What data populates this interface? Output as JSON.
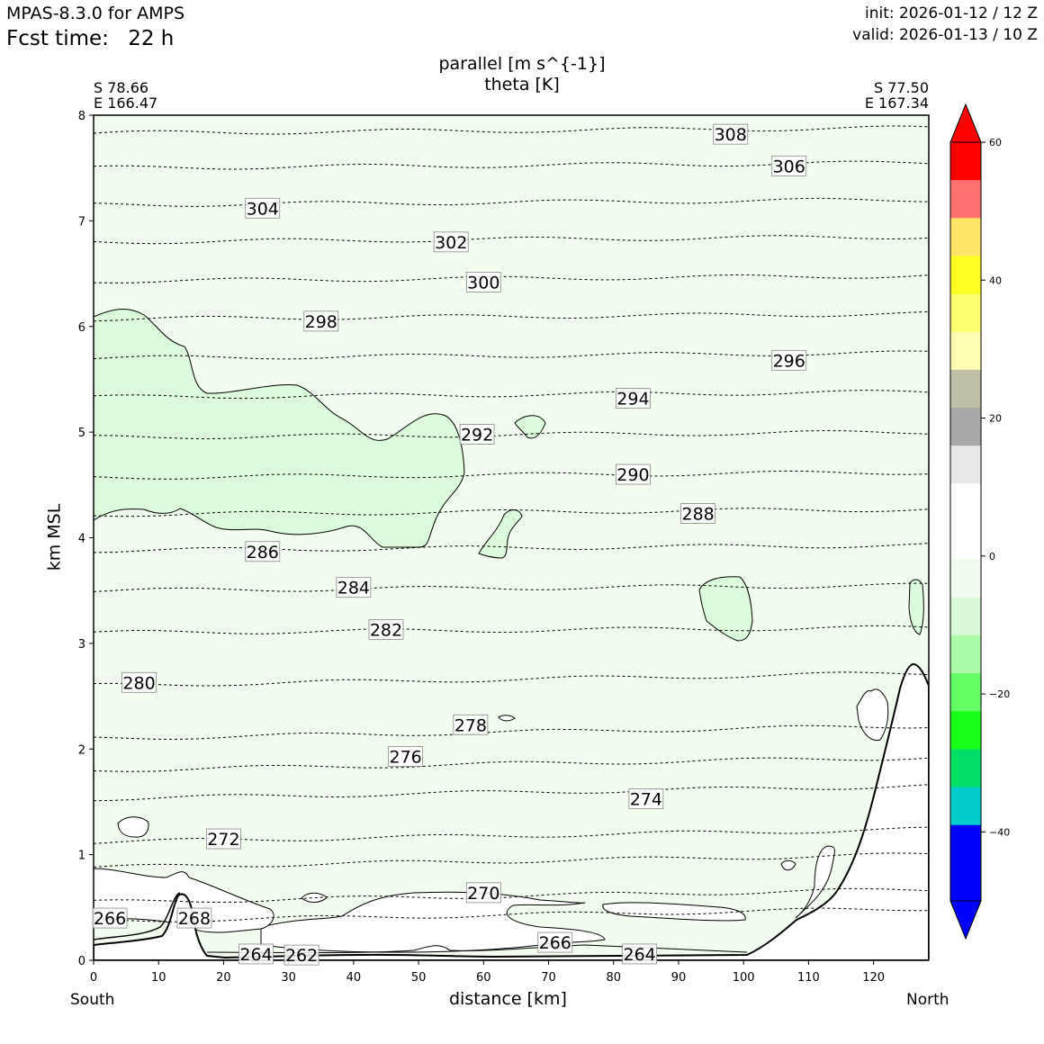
{
  "header": {
    "model": "MPAS-8.3.0 for AMPS",
    "fcst_label": "Fcst time:",
    "fcst_value": "22 h",
    "init": "init: 2026-01-12 / 12 Z",
    "valid": "valid: 2026-01-13 / 10 Z"
  },
  "chart_data": {
    "type": "cross-section contour",
    "title_line1": "parallel [m s^{-1}]",
    "title_line2": "theta [K]",
    "start_point": {
      "lat": "S 78.66",
      "lon": "E 166.47"
    },
    "end_point": {
      "lat": "S 77.50",
      "lon": "E 167.34"
    },
    "xlabel": "distance [km]",
    "ylabel": "km MSL",
    "x_start_label": "South",
    "x_end_label": "North",
    "xlim": [
      0,
      128.5
    ],
    "ylim": [
      0,
      8
    ],
    "xticks": [
      "0",
      "10",
      "20",
      "30",
      "40",
      "50",
      "60",
      "70",
      "80",
      "90",
      "100",
      "110",
      "120"
    ],
    "yticks": [
      "0",
      "1",
      "2",
      "3",
      "4",
      "5",
      "6",
      "7",
      "8"
    ],
    "theta_labels": [
      {
        "value": "308",
        "x": 98,
        "y": 7.82
      },
      {
        "value": "306",
        "x": 107,
        "y": 7.52
      },
      {
        "value": "304",
        "x": 26,
        "y": 7.12
      },
      {
        "value": "302",
        "x": 55,
        "y": 6.8
      },
      {
        "value": "300",
        "x": 60,
        "y": 6.42
      },
      {
        "value": "298",
        "x": 35,
        "y": 6.05
      },
      {
        "value": "296",
        "x": 107,
        "y": 5.68
      },
      {
        "value": "294",
        "x": 83,
        "y": 5.32
      },
      {
        "value": "292",
        "x": 59,
        "y": 4.98
      },
      {
        "value": "290",
        "x": 83,
        "y": 4.6
      },
      {
        "value": "288",
        "x": 93,
        "y": 4.23
      },
      {
        "value": "286",
        "x": 26,
        "y": 3.87
      },
      {
        "value": "284",
        "x": 40,
        "y": 3.53
      },
      {
        "value": "282",
        "x": 45,
        "y": 3.13
      },
      {
        "value": "280",
        "x": 7,
        "y": 2.63
      },
      {
        "value": "278",
        "x": 58,
        "y": 2.23
      },
      {
        "value": "276",
        "x": 48,
        "y": 1.93
      },
      {
        "value": "274",
        "x": 85,
        "y": 1.53
      },
      {
        "value": "272",
        "x": 20,
        "y": 1.15
      },
      {
        "value": "270",
        "x": 60,
        "y": 0.64
      },
      {
        "value": "268",
        "x": 15.5,
        "y": 0.4
      },
      {
        "value": "266",
        "x": 2.5,
        "y": 0.4
      },
      {
        "value": "266",
        "x": 71,
        "y": 0.17
      },
      {
        "value": "264",
        "x": 25,
        "y": 0.06
      },
      {
        "value": "262",
        "x": 32,
        "y": 0.05
      },
      {
        "value": "264",
        "x": 84,
        "y": 0.06
      }
    ],
    "colorbar": {
      "ticks": [
        "60",
        "40",
        "20",
        "0",
        "−20",
        "−40"
      ],
      "tick_values": [
        60,
        40,
        20,
        0,
        -20,
        -40
      ],
      "range": [
        -50,
        60
      ],
      "colors_top_to_bottom": [
        "#ff0000",
        "#ff7070",
        "#ffe566",
        "#ffff26",
        "#ffff70",
        "#ffffb3",
        "#bfbfa5",
        "#a9a9a9",
        "#e8e8e8",
        "#ffffff",
        "#ffffff",
        "#f2fdf0",
        "#d9fad7",
        "#abfba8",
        "#66ff66",
        "#1aff1a",
        "#00e066",
        "#00cccc",
        "#0000ff",
        "#0000ff"
      ],
      "top_arrow": "#ff0000",
      "bottom_arrow": "#0000ff"
    },
    "fill_colors": {
      "background": "#f2fdf0",
      "light_green": "#dcfadc",
      "terrain": "#ffffff"
    }
  }
}
